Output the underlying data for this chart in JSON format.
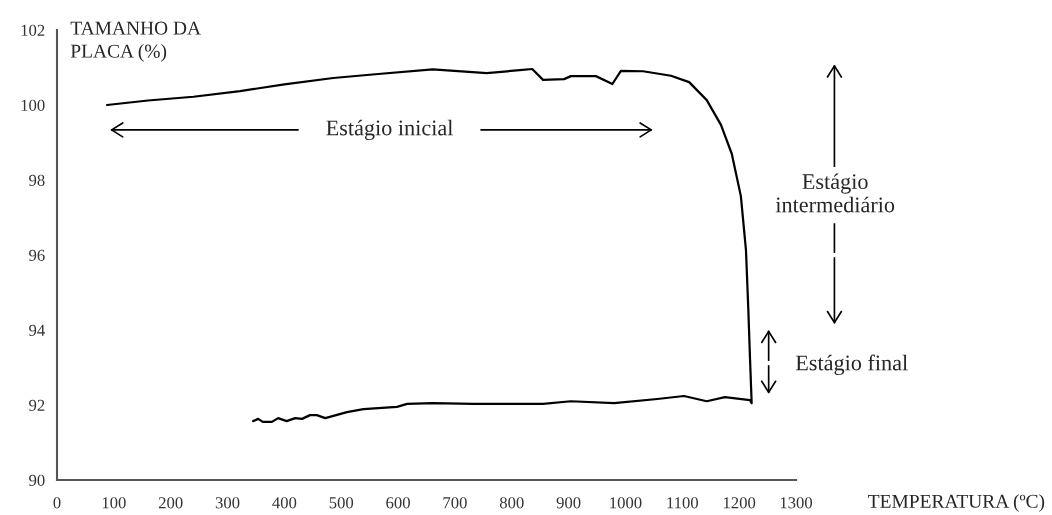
{
  "chart_data": {
    "type": "line",
    "xlabel": "TEMPERATURA (ºC)",
    "ylabel": "TAMANHO DA\nPLACA (%)",
    "series": [
      {
        "color": "#000000",
        "x": [
          88,
          160,
          240,
          322,
          400,
          486,
          560,
          661,
          756,
          814,
          836,
          855,
          892,
          904,
          948,
          977,
          992,
          1031,
          1080,
          1112,
          1143,
          1168,
          1187,
          1203,
          1212,
          1216,
          1219,
          1222,
          1219,
          1175,
          1143,
          1103,
          1056,
          980,
          904,
          855,
          779,
          732,
          661,
          616,
          598,
          539,
          510,
          472,
          457,
          445,
          431,
          419,
          404,
          389,
          378,
          362,
          354,
          345
        ],
        "values": [
          100.0,
          100.12,
          100.22,
          100.37,
          100.55,
          100.72,
          100.82,
          100.95,
          100.85,
          100.93,
          100.96,
          100.67,
          100.69,
          100.77,
          100.77,
          100.56,
          100.91,
          100.9,
          100.78,
          100.61,
          100.13,
          99.47,
          98.7,
          97.57,
          96.13,
          94.6,
          93.28,
          92.05,
          92.13,
          92.21,
          92.1,
          92.24,
          92.16,
          92.05,
          92.1,
          92.03,
          92.03,
          92.03,
          92.05,
          92.03,
          91.95,
          91.89,
          91.81,
          91.65,
          91.73,
          91.73,
          91.63,
          91.65,
          91.57,
          91.65,
          91.55,
          91.55,
          91.63,
          91.57
        ]
      }
    ],
    "xlim": [
      0,
      1300
    ],
    "xticks": [
      0,
      100,
      200,
      300,
      400,
      500,
      600,
      700,
      800,
      900,
      1000,
      1100,
      1200,
      1300
    ],
    "ylim": [
      90,
      102
    ],
    "yticks": [
      90,
      92,
      94,
      96,
      98,
      100,
      102
    ],
    "grid": false,
    "legend": false,
    "marker": "none",
    "line_style": "solid",
    "annotations": [
      "Estágio inicial",
      "Estágio\nintermediário",
      "Estágio final"
    ]
  }
}
